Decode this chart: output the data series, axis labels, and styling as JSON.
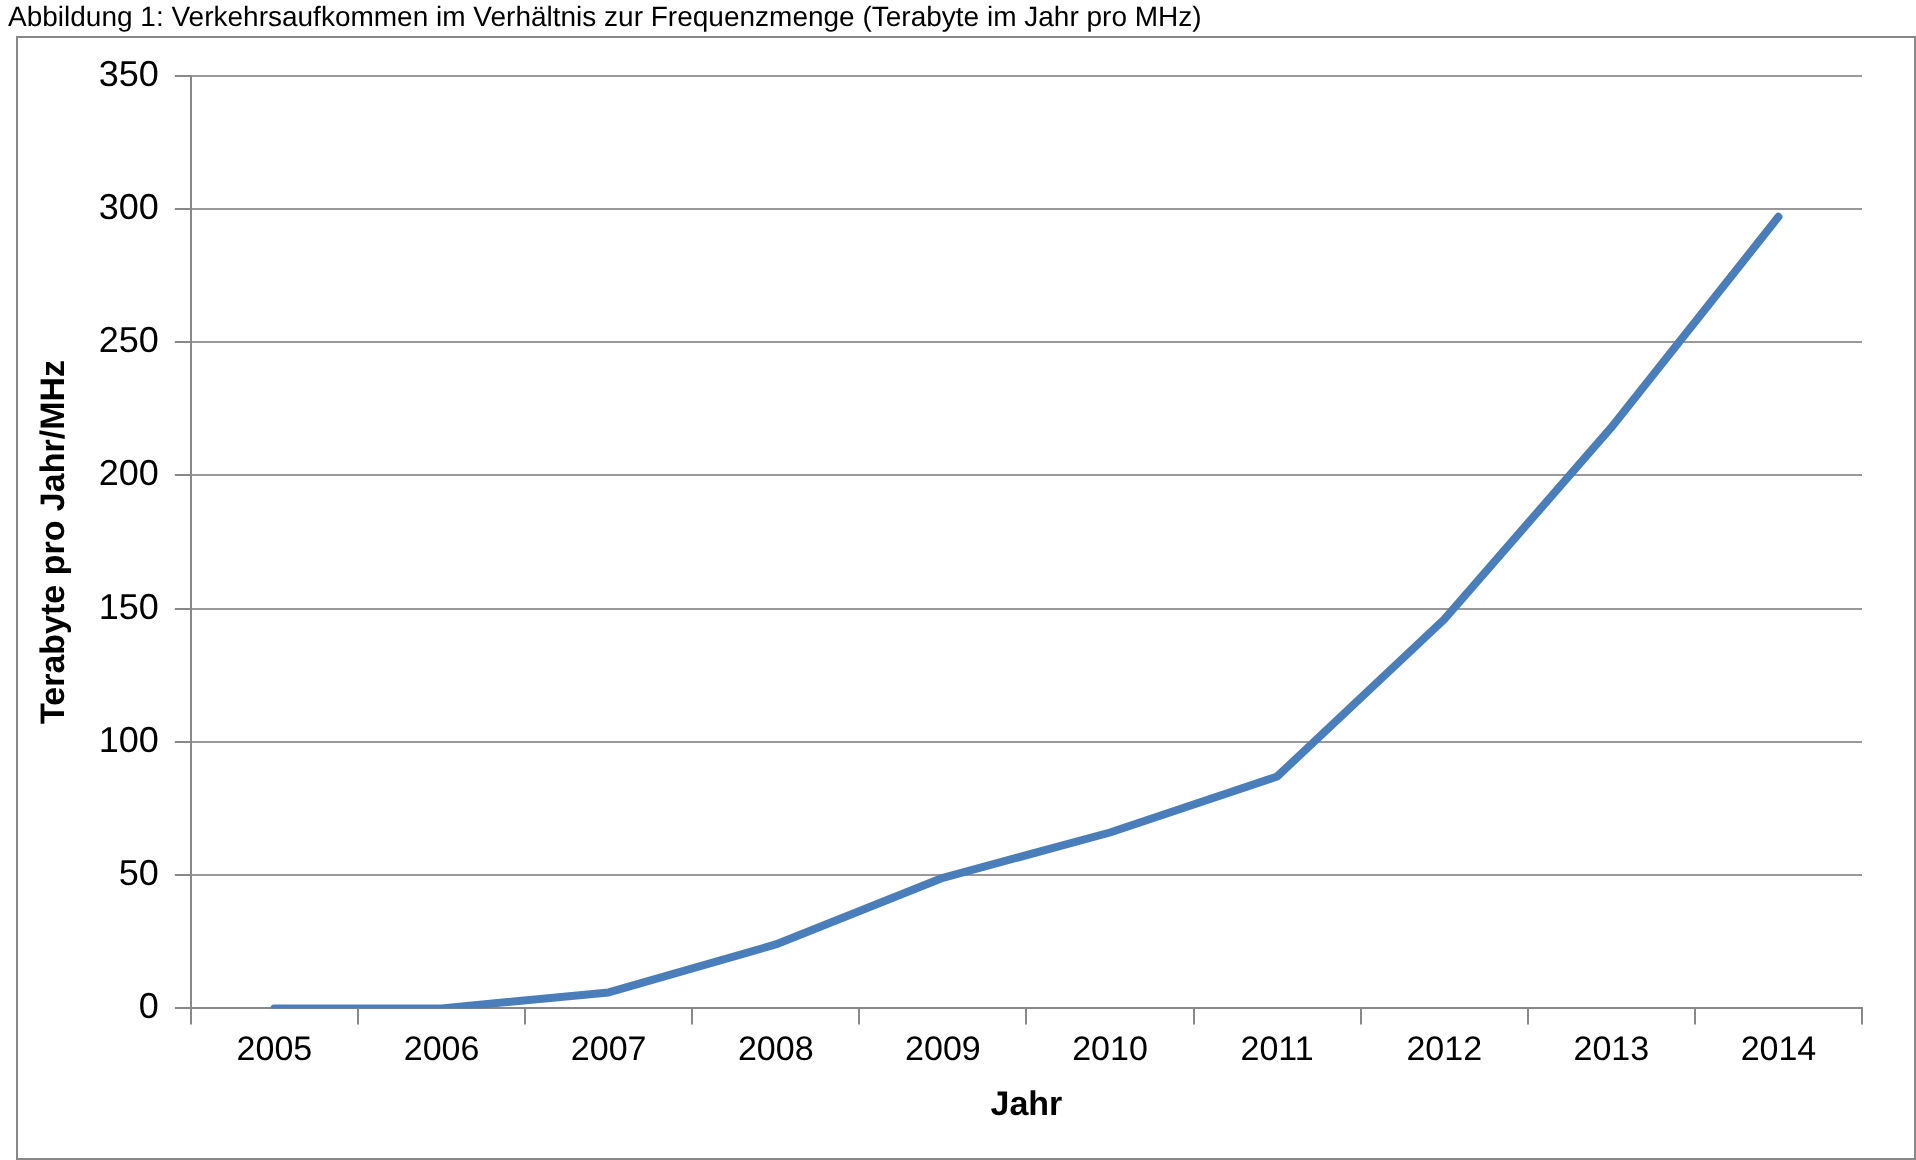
{
  "chart_data": {
    "type": "line",
    "title": "Abbildung 1: Verkehrsaufkommen im Verhältnis zur Frequenzmenge (Terabyte im Jahr pro MHz)",
    "xlabel": "Jahr",
    "ylabel": "Terabyte pro Jahr/MHz",
    "categories": [
      "2005",
      "2006",
      "2007",
      "2008",
      "2009",
      "2010",
      "2011",
      "2012",
      "2013",
      "2014"
    ],
    "series": [
      {
        "color": "#4a7ebb",
        "values": [
          0,
          0,
          6,
          24,
          49,
          66,
          87,
          146,
          218,
          297
        ]
      }
    ],
    "ylim": [
      0,
      350
    ],
    "yticks": [
      0,
      50,
      100,
      150,
      200,
      250,
      300,
      350
    ],
    "grid": "y",
    "legend": false,
    "marker": "none",
    "line_style": "solid"
  }
}
